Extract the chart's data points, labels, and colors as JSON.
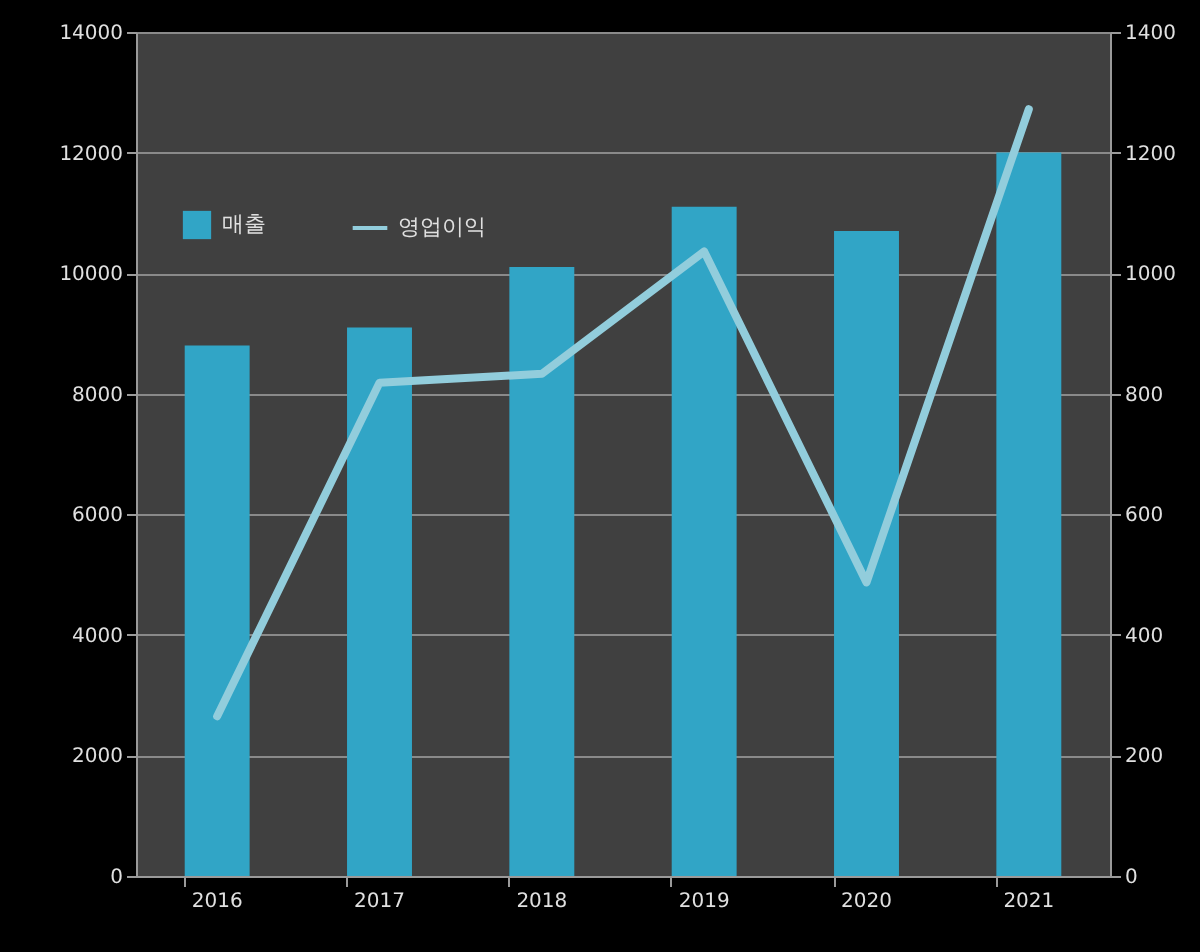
{
  "chart_data": {
    "type": "bar",
    "categories": [
      "2016",
      "2017",
      "2018",
      "2019",
      "2020",
      "2021"
    ],
    "series": [
      {
        "name": "매출",
        "color": "#31a5c6",
        "values": [
          8800,
          9100,
          10100,
          11100,
          10700,
          12000
        ]
      },
      {
        "name": "영업이익",
        "type": "line",
        "axis": "y2",
        "color": "#92cddc",
        "values": [
          265,
          818,
          833,
          1036,
          487,
          1272
        ]
      }
    ],
    "ylim": [
      0,
      14000
    ],
    "yticks": [
      0,
      2000,
      4000,
      6000,
      8000,
      10000,
      12000,
      14000
    ],
    "y2lim": [
      0,
      1400
    ],
    "y2ticks": [
      0,
      200,
      400,
      600,
      800,
      1000,
      1200,
      1400
    ],
    "grid": "y",
    "legend": "top left"
  }
}
